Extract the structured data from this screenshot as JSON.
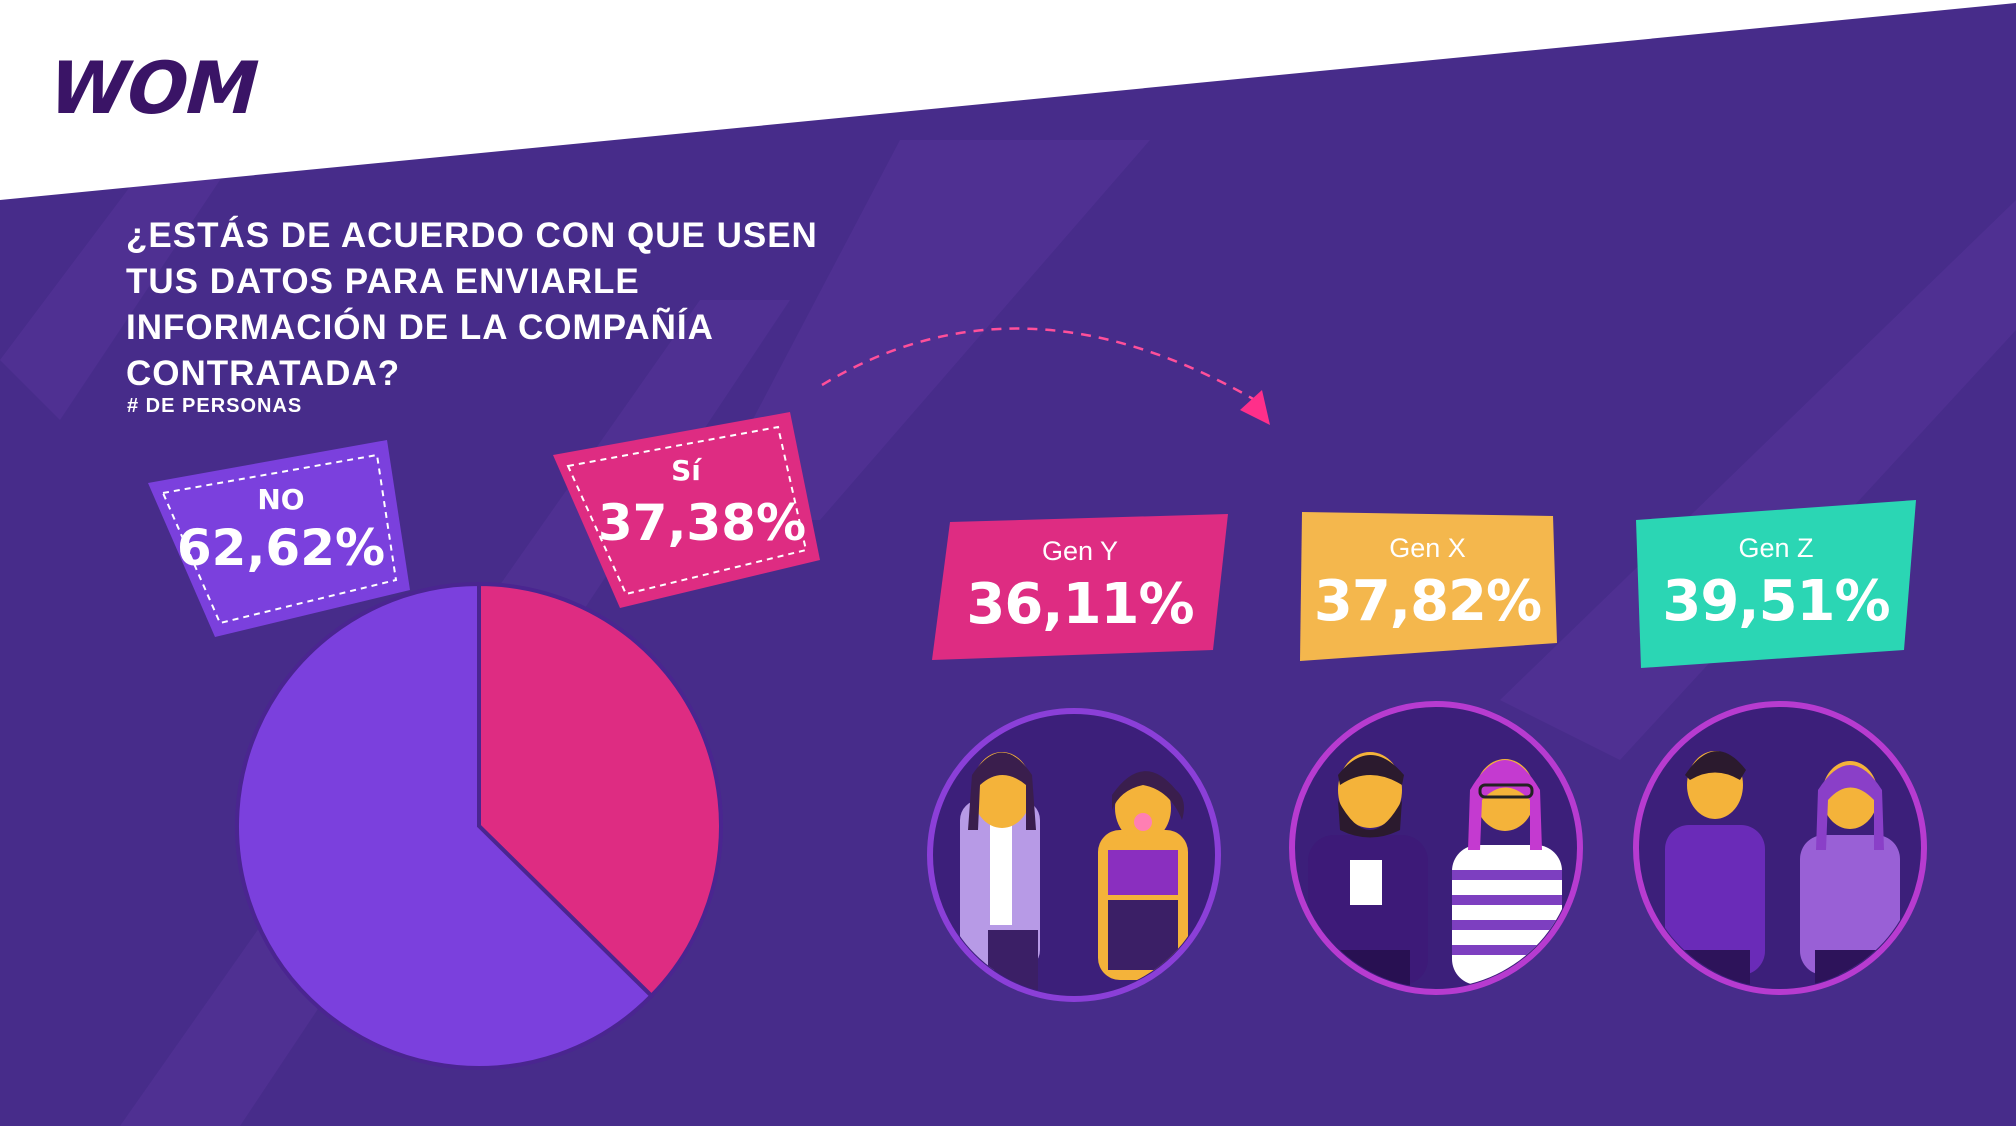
{
  "brand": {
    "logo_text": "WOM"
  },
  "colors": {
    "background": "#472c8a",
    "no": "#7b40dd",
    "si": "#de2c82",
    "gen_y": "#de2c82",
    "gen_x": "#f4b74d",
    "gen_z": "#2bd6b4",
    "skin": "#f4b33a"
  },
  "chart_data": {
    "type": "pie",
    "title": "¿ESTÁS DE ACUERDO CON QUE USEN TUS DATOS PARA ENVIARLE INFORMACIÓN DE LA COMPAÑÍA CONTRATADA?",
    "subtitle": "# DE PERSONAS",
    "slices": [
      {
        "label": "NO",
        "value": 62.62,
        "display": "62,62%",
        "color": "#7b40dd"
      },
      {
        "label": "Sí",
        "value": 37.38,
        "display": "37,38%",
        "color": "#de2c82"
      }
    ],
    "breakdown": {
      "type": "table",
      "items": [
        {
          "label": "Gen Y",
          "value": 36.11,
          "display": "36,11%",
          "color": "#de2c82"
        },
        {
          "label": "Gen X",
          "value": 37.82,
          "display": "37,82%",
          "color": "#f4b74d"
        },
        {
          "label": "Gen Z",
          "value": 39.51,
          "display": "39,51%",
          "color": "#2bd6b4"
        }
      ]
    }
  }
}
